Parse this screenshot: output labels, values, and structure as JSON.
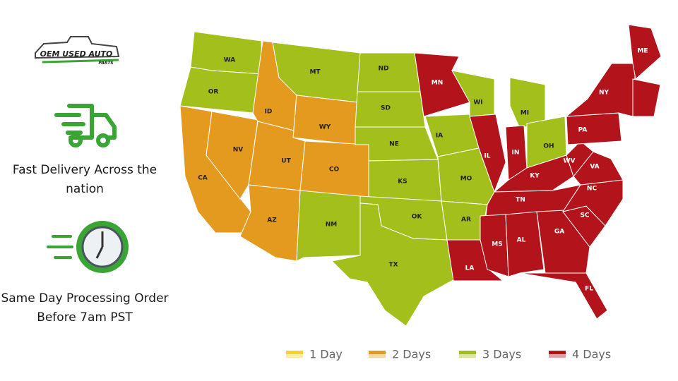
{
  "logo": {
    "title": "OEM USED AUTO",
    "subtitle": "PARTS"
  },
  "features": [
    {
      "text": "Fast Delivery Across the nation"
    },
    {
      "text": "Same Day Processing Order Before 7am PST"
    }
  ],
  "legend": [
    {
      "label": "1 Day",
      "color": "#f5d327"
    },
    {
      "label": "2 Days",
      "color": "#e39a1e"
    },
    {
      "label": "3 Days",
      "color": "#a3bf1c"
    },
    {
      "label": "4 Days",
      "color": "#b3131a"
    }
  ],
  "states": [
    {
      "label": "WA",
      "color": "#a3bf1c"
    },
    {
      "label": "OR",
      "color": "#a3bf1c"
    },
    {
      "label": "CA",
      "color": "#e39a1e"
    },
    {
      "label": "NV",
      "color": "#e39a1e"
    },
    {
      "label": "ID",
      "color": "#e39a1e"
    },
    {
      "label": "MT",
      "color": "#a3bf1c"
    },
    {
      "label": "WY",
      "color": "#e39a1e"
    },
    {
      "label": "UT",
      "color": "#e39a1e"
    },
    {
      "label": "CO",
      "color": "#e39a1e"
    },
    {
      "label": "AZ",
      "color": "#e39a1e"
    },
    {
      "label": "NM",
      "color": "#a3bf1c"
    },
    {
      "label": "ND",
      "color": "#a3bf1c"
    },
    {
      "label": "SD",
      "color": "#a3bf1c"
    },
    {
      "label": "NE",
      "color": "#a3bf1c"
    },
    {
      "label": "KS",
      "color": "#a3bf1c"
    },
    {
      "label": "OK",
      "color": "#a3bf1c"
    },
    {
      "label": "TX",
      "color": "#a3bf1c"
    },
    {
      "label": "MN",
      "color": "#b3131a"
    },
    {
      "label": "IA",
      "color": "#a3bf1c"
    },
    {
      "label": "MO",
      "color": "#a3bf1c"
    },
    {
      "label": "AR",
      "color": "#a3bf1c"
    },
    {
      "label": "LA",
      "color": "#b3131a"
    },
    {
      "label": "WI",
      "color": "#a3bf1c"
    },
    {
      "label": "IL",
      "color": "#b3131a"
    },
    {
      "label": "MI",
      "color": "#a3bf1c"
    },
    {
      "label": "IN",
      "color": "#b3131a"
    },
    {
      "label": "OH",
      "color": "#a3bf1c"
    },
    {
      "label": "KY",
      "color": "#b3131a"
    },
    {
      "label": "TN",
      "color": "#b3131a"
    },
    {
      "label": "MS",
      "color": "#b3131a"
    },
    {
      "label": "AL",
      "color": "#b3131a"
    },
    {
      "label": "GA",
      "color": "#b3131a"
    },
    {
      "label": "FL",
      "color": "#b3131a"
    },
    {
      "label": "SC",
      "color": "#b3131a"
    },
    {
      "label": "NC",
      "color": "#b3131a"
    },
    {
      "label": "VA",
      "color": "#b3131a"
    },
    {
      "label": "WV",
      "color": "#b3131a"
    },
    {
      "label": "PA",
      "color": "#b3131a"
    },
    {
      "label": "NY",
      "color": "#b3131a"
    },
    {
      "label": "ME",
      "color": "#b3131a"
    }
  ]
}
